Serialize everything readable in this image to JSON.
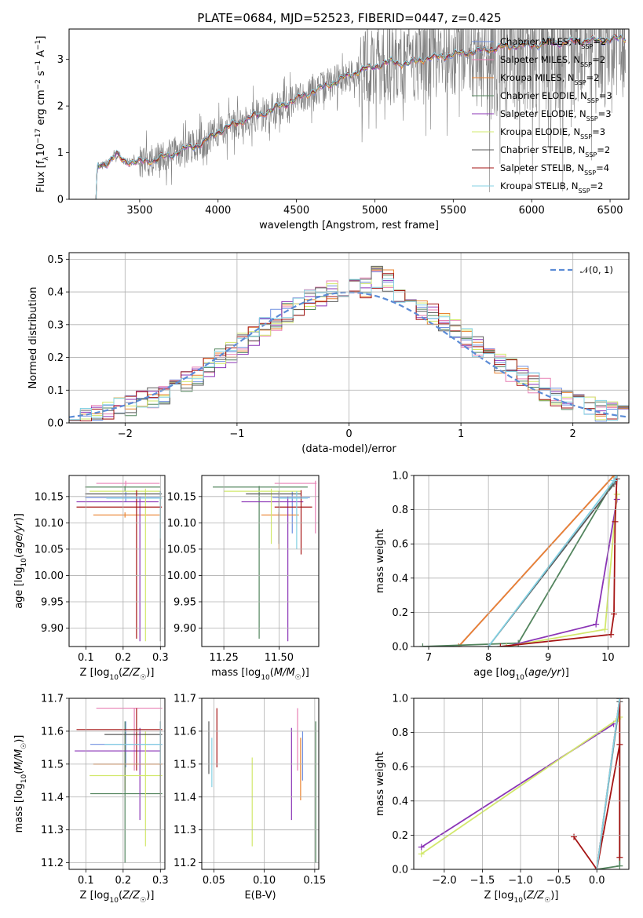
{
  "figure_title": "PLATE=0684, MJD=52523, FIBERID=0447, z=0.425",
  "colors": {
    "Chabrier MILES": "#6f8fe0",
    "Salpeter MILES": "#e77fb3",
    "Kroupa MILES": "#e98331",
    "Chabrier ELODIE": "#53855e",
    "Salpeter ELODIE": "#8b35b6",
    "Kroupa ELODIE": "#d2e86c",
    "Chabrier STELIB": "#5a5a5a",
    "Salpeter STELIB": "#a51414",
    "Kroupa STELIB": "#83d1e3",
    "observed": "#808080",
    "gaussian": "#5b8bd6"
  },
  "chart_data": [
    {
      "id": "spectrum",
      "type": "line",
      "xlabel": "wavelength [Angstrom, rest frame]",
      "ylabel": "Flux [f_λ 10^-17 erg cm^-2 s^-1 A^-1]",
      "xlim": [
        3050,
        6620
      ],
      "ylim": [
        0,
        3.65
      ],
      "xticks": [
        3500,
        4000,
        4500,
        5000,
        5500,
        6000,
        6500
      ],
      "yticks": [
        0,
        1,
        2,
        3
      ],
      "grid": false,
      "legend": {
        "position": "top-right"
      },
      "series": [
        {
          "name": "Chabrier MILES",
          "nssp": "2"
        },
        {
          "name": "Salpeter MILES",
          "nssp": "2"
        },
        {
          "name": "Kroupa MILES",
          "nssp": "2"
        },
        {
          "name": "Chabrier ELODIE",
          "nssp": "3"
        },
        {
          "name": "Salpeter ELODIE",
          "nssp": "3"
        },
        {
          "name": "Kroupa ELODIE",
          "nssp": "3"
        },
        {
          "name": "Chabrier STELIB",
          "nssp": "2"
        },
        {
          "name": "Salpeter STELIB",
          "nssp": "4"
        },
        {
          "name": "Kroupa STELIB",
          "nssp": "2"
        }
      ],
      "model_continuum": {
        "x": [
          3220,
          3230,
          3300,
          3350,
          3400,
          3500,
          3600,
          3700,
          3800,
          3900,
          4000,
          4100,
          4200,
          4300,
          4400,
          4500,
          4600,
          4700,
          4800,
          4900,
          5000,
          5100,
          5200,
          5300,
          5400,
          5500,
          5600,
          5700,
          5800,
          5900,
          6000,
          6100,
          6200,
          6300,
          6400,
          6500,
          6600
        ],
        "y": [
          0.0,
          0.7,
          0.8,
          0.95,
          0.82,
          0.8,
          0.85,
          0.95,
          1.1,
          1.2,
          1.45,
          1.6,
          1.75,
          1.85,
          2.0,
          2.15,
          2.3,
          2.45,
          2.6,
          2.75,
          2.85,
          2.95,
          2.9,
          3.0,
          3.05,
          3.1,
          3.15,
          3.2,
          3.25,
          3.3,
          3.3,
          3.35,
          3.35,
          3.4,
          3.4,
          3.42,
          3.45
        ]
      },
      "observed_flux_range": [
        3200,
        6600
      ]
    },
    {
      "id": "residuals",
      "type": "histogram",
      "xlabel": "(data-model)/error",
      "ylabel": "Normed distribution",
      "xlim": [
        -2.5,
        2.5
      ],
      "ylim": [
        0,
        0.52
      ],
      "xticks": [
        -2,
        -1,
        0,
        1,
        2
      ],
      "yticks": [
        0.0,
        0.1,
        0.2,
        0.3,
        0.4,
        0.5
      ],
      "grid": true,
      "legend": {
        "position": "top-right",
        "label": "𝒩(0, 1)"
      },
      "bin_width": 0.1,
      "bin_start": -2.5,
      "reference_curve": {
        "type": "normal",
        "mean": 0,
        "sigma": 1
      }
    },
    {
      "id": "age-vs-Z",
      "type": "errorbar",
      "xlabel": "Z [log10(Z/Z☉)]",
      "ylabel": "age [log10(age/yr)]",
      "xlim": [
        0.055,
        0.312
      ],
      "ylim": [
        9.865,
        10.19
      ],
      "xticks": [
        0.1,
        0.2,
        0.3
      ],
      "yticks": [
        9.9,
        9.95,
        10.0,
        10.05,
        10.1,
        10.15
      ],
      "grid": true,
      "points": [
        {
          "series": "Chabrier MILES",
          "x": 0.207,
          "y": 10.148,
          "xerr": [
            0.098,
            0.298
          ],
          "yerr": [
            10.14,
            10.16
          ]
        },
        {
          "series": "Salpeter MILES",
          "x": 0.207,
          "y": 10.175,
          "xerr": [
            0.128,
            0.298
          ],
          "yerr": [
            10.17,
            10.18
          ]
        },
        {
          "series": "Kroupa MILES",
          "x": 0.205,
          "y": 10.115,
          "xerr": [
            0.12,
            0.298
          ],
          "yerr": [
            10.11,
            10.12
          ]
        },
        {
          "series": "Chabrier ELODIE",
          "x": 0.205,
          "y": 10.168,
          "xerr": [
            0.098,
            0.3
          ],
          "yerr": [
            10.16,
            10.17
          ]
        },
        {
          "series": "Salpeter ELODIE",
          "x": 0.245,
          "y": 10.14,
          "xerr": [
            0.075,
            0.295
          ],
          "yerr": [
            9.875,
            10.15
          ]
        },
        {
          "series": "Kroupa ELODIE",
          "x": 0.26,
          "y": 10.16,
          "xerr": [
            0.11,
            0.3
          ],
          "yerr": [
            9.875,
            10.165
          ]
        },
        {
          "series": "Chabrier STELIB",
          "x": 0.3,
          "y": 10.155,
          "xerr": [
            0.098,
            0.304
          ],
          "yerr": [
            9.875,
            10.16
          ]
        },
        {
          "series": "Salpeter STELIB",
          "x": 0.236,
          "y": 10.13,
          "xerr": [
            0.075,
            0.304
          ],
          "yerr": [
            9.88,
            10.162
          ]
        },
        {
          "series": "Kroupa STELIB",
          "x": 0.3,
          "y": 10.147,
          "xerr": [
            0.155,
            0.304
          ],
          "yerr": [
            10.07,
            10.16
          ]
        }
      ]
    },
    {
      "id": "age-vs-mass",
      "type": "errorbar",
      "xlabel": "mass [log10(M/M☉)]",
      "ylabel": "",
      "xlim": [
        11.15,
        11.68
      ],
      "ylim": [
        9.865,
        10.19
      ],
      "xticks": [
        11.25,
        11.5
      ],
      "xtick_labels": [
        "11.25",
        "11.50"
      ],
      "yticks": [
        9.9,
        9.95,
        10.0,
        10.05,
        10.1,
        10.15
      ],
      "grid": true,
      "points": [
        {
          "series": "Chabrier MILES",
          "x": 11.56,
          "y": 10.148,
          "xerr": [
            11.47,
            11.64
          ],
          "yerr": [
            10.08,
            10.16
          ]
        },
        {
          "series": "Salpeter MILES",
          "x": 11.665,
          "y": 10.175,
          "xerr": [
            11.48,
            11.67
          ],
          "yerr": [
            10.08,
            10.18
          ]
        },
        {
          "series": "Kroupa MILES",
          "x": 11.5,
          "y": 10.115,
          "xerr": [
            11.42,
            11.59
          ],
          "yerr": [
            10.05,
            10.12
          ]
        },
        {
          "series": "Chabrier ELODIE",
          "x": 11.41,
          "y": 10.168,
          "xerr": [
            11.2,
            11.63
          ],
          "yerr": [
            9.88,
            10.17
          ]
        },
        {
          "series": "Salpeter ELODIE",
          "x": 11.54,
          "y": 10.14,
          "xerr": [
            11.33,
            11.61
          ],
          "yerr": [
            9.875,
            10.15
          ]
        },
        {
          "series": "Kroupa ELODIE",
          "x": 11.465,
          "y": 10.16,
          "xerr": [
            11.25,
            11.6
          ],
          "yerr": [
            10.06,
            10.165
          ]
        },
        {
          "series": "Chabrier STELIB",
          "x": 11.5,
          "y": 10.155,
          "xerr": [
            11.35,
            11.6
          ],
          "yerr": [
            10.06,
            10.16
          ]
        },
        {
          "series": "Salpeter STELIB",
          "x": 11.6,
          "y": 10.13,
          "xerr": [
            11.48,
            11.65
          ],
          "yerr": [
            10.04,
            10.162
          ]
        },
        {
          "series": "Kroupa STELIB",
          "x": 11.58,
          "y": 10.147,
          "xerr": [
            11.5,
            11.63
          ],
          "yerr": [
            10.05,
            10.16
          ]
        }
      ]
    },
    {
      "id": "mass-weight-vs-age",
      "type": "cumulative-line",
      "xlabel": "age [log10(age/yr)]",
      "ylabel": "mass weight",
      "xlim": [
        6.75,
        10.35
      ],
      "ylim": [
        0,
        1.0
      ],
      "xticks": [
        7,
        8,
        9,
        10
      ],
      "yticks": [
        0.0,
        0.2,
        0.4,
        0.6,
        0.8,
        1.0
      ],
      "grid": true,
      "series": [
        {
          "name": "Chabrier MILES",
          "x": [
            7.5,
            10.1
          ],
          "y": [
            0.0,
            1.0
          ]
        },
        {
          "name": "Salpeter MILES",
          "x": [
            7.5,
            10.1
          ],
          "y": [
            0.0,
            1.0
          ]
        },
        {
          "name": "Kroupa MILES",
          "x": [
            7.5,
            10.1
          ],
          "y": [
            0.0,
            1.0
          ]
        },
        {
          "name": "Chabrier ELODIE",
          "x": [
            6.9,
            8.5,
            10.15
          ],
          "y": [
            0.0,
            0.02,
            1.0
          ]
        },
        {
          "name": "Salpeter ELODIE",
          "x": [
            8.3,
            9.8,
            10.15
          ],
          "y": [
            0.0,
            0.13,
            0.86
          ]
        },
        {
          "name": "Kroupa ELODIE",
          "x": [
            8.3,
            9.95,
            10.15
          ],
          "y": [
            0.0,
            0.1,
            0.89
          ]
        },
        {
          "name": "Chabrier STELIB",
          "x": [
            8.0,
            10.1,
            10.15
          ],
          "y": [
            0.0,
            0.95,
            0.98
          ]
        },
        {
          "name": "Salpeter STELIB",
          "x": [
            8.2,
            10.05,
            10.1,
            10.12,
            10.15
          ],
          "y": [
            0.0,
            0.07,
            0.19,
            0.73,
            1.0
          ]
        },
        {
          "name": "Kroupa STELIB",
          "x": [
            8.0,
            10.1,
            10.15
          ],
          "y": [
            0.0,
            0.97,
            1.0
          ]
        }
      ]
    },
    {
      "id": "mass-vs-Z",
      "type": "errorbar",
      "xlabel": "Z [log10(Z/Z☉)]",
      "ylabel": "mass [log10(M/M☉)]",
      "xlim": [
        0.055,
        0.312
      ],
      "ylim": [
        11.18,
        11.7
      ],
      "xticks": [
        0.1,
        0.2,
        0.3
      ],
      "yticks": [
        11.2,
        11.3,
        11.4,
        11.5,
        11.6,
        11.7
      ],
      "grid": true,
      "points": [
        {
          "series": "Chabrier MILES",
          "x": 0.207,
          "y": 11.56,
          "xerr": [
            0.112,
            0.305
          ],
          "yerr": [
            11.49,
            11.63
          ]
        },
        {
          "series": "Salpeter MILES",
          "x": 0.23,
          "y": 11.67,
          "xerr": [
            0.128,
            0.305
          ],
          "yerr": [
            11.48,
            11.67
          ]
        },
        {
          "series": "Kroupa MILES",
          "x": 0.205,
          "y": 11.5,
          "xerr": [
            0.12,
            0.305
          ],
          "yerr": [
            11.42,
            11.59
          ]
        },
        {
          "series": "Chabrier ELODIE",
          "x": 0.205,
          "y": 11.41,
          "xerr": [
            0.112,
            0.305
          ],
          "yerr": [
            11.2,
            11.63
          ]
        },
        {
          "series": "Salpeter ELODIE",
          "x": 0.245,
          "y": 11.54,
          "xerr": [
            0.07,
            0.3
          ],
          "yerr": [
            11.33,
            11.61
          ]
        },
        {
          "series": "Kroupa ELODIE",
          "x": 0.26,
          "y": 11.465,
          "xerr": [
            0.11,
            0.305
          ],
          "yerr": [
            11.25,
            11.6
          ]
        },
        {
          "series": "Chabrier STELIB",
          "x": 0.3,
          "y": 11.59,
          "xerr": [
            0.15,
            0.305
          ],
          "yerr": [
            11.2,
            11.63
          ]
        },
        {
          "series": "Salpeter STELIB",
          "x": 0.236,
          "y": 11.605,
          "xerr": [
            0.075,
            0.305
          ],
          "yerr": [
            11.48,
            11.67
          ]
        },
        {
          "series": "Kroupa STELIB",
          "x": 0.3,
          "y": 11.56,
          "xerr": [
            0.15,
            0.305
          ],
          "yerr": [
            11.5,
            11.63
          ]
        }
      ]
    },
    {
      "id": "mass-vs-ebv",
      "type": "errorbar",
      "xlabel": "E(B-V)",
      "ylabel": "",
      "xlim": [
        0.038,
        0.154
      ],
      "ylim": [
        11.18,
        11.7
      ],
      "xticks": [
        0.05,
        0.1,
        0.15
      ],
      "xtick_labels": [
        "0.05",
        "0.10",
        "0.15"
      ],
      "yticks": [
        11.2,
        11.3,
        11.4,
        11.5,
        11.6,
        11.7
      ],
      "grid": true,
      "points": [
        {
          "series": "Chabrier MILES",
          "x": 0.138,
          "y": 11.5,
          "yerr": [
            11.45,
            11.6
          ]
        },
        {
          "series": "Salpeter MILES",
          "x": 0.133,
          "y": 11.55,
          "yerr": [
            11.48,
            11.67
          ]
        },
        {
          "series": "Kroupa MILES",
          "x": 0.136,
          "y": 11.48,
          "yerr": [
            11.39,
            11.58
          ]
        },
        {
          "series": "Chabrier ELODIE",
          "x": 0.151,
          "y": 11.4,
          "yerr": [
            11.2,
            11.63
          ]
        },
        {
          "series": "Salpeter ELODIE",
          "x": 0.127,
          "y": 11.47,
          "yerr": [
            11.33,
            11.61
          ]
        },
        {
          "series": "Kroupa ELODIE",
          "x": 0.088,
          "y": 11.4,
          "yerr": [
            11.25,
            11.52
          ]
        },
        {
          "series": "Chabrier STELIB",
          "x": 0.045,
          "y": 11.55,
          "yerr": [
            11.47,
            11.63
          ]
        },
        {
          "series": "Salpeter STELIB",
          "x": 0.053,
          "y": 11.58,
          "yerr": [
            11.49,
            11.67
          ]
        },
        {
          "series": "Kroupa STELIB",
          "x": 0.048,
          "y": 11.5,
          "yerr": [
            11.43,
            11.58
          ]
        }
      ]
    },
    {
      "id": "mass-weight-vs-Z",
      "type": "cumulative-line",
      "xlabel": "Z [log10(Z/Z☉)]",
      "ylabel": "mass weight",
      "xlim": [
        -2.4,
        0.42
      ],
      "ylim": [
        0,
        1.0
      ],
      "xticks": [
        -2.0,
        -1.5,
        -1.0,
        -0.5,
        0.0
      ],
      "xtick_labels": [
        "−2.0",
        "−1.5",
        "−1.0",
        "−0.5",
        "0.0"
      ],
      "yticks": [
        0.0,
        0.2,
        0.4,
        0.6,
        0.8,
        1.0
      ],
      "grid": true,
      "series": [
        {
          "name": "Chabrier MILES",
          "x": [
            0.0,
            0.3
          ],
          "y": [
            0.0,
            1.0
          ]
        },
        {
          "name": "Salpeter MILES",
          "x": [
            0.0,
            0.3
          ],
          "y": [
            0.0,
            1.0
          ]
        },
        {
          "name": "Kroupa MILES",
          "x": [
            0.0,
            0.3
          ],
          "y": [
            0.0,
            1.0
          ]
        },
        {
          "name": "Chabrier ELODIE",
          "x": [
            0.0,
            0.3,
            0.3
          ],
          "y": [
            0.0,
            0.02,
            1.0
          ]
        },
        {
          "name": "Salpeter ELODIE",
          "x": [
            -2.3,
            0.22
          ],
          "y": [
            0.13,
            0.85
          ]
        },
        {
          "name": "Kroupa ELODIE",
          "x": [
            -2.3,
            0.28,
            0.3
          ],
          "y": [
            0.09,
            0.88,
            0.89
          ]
        },
        {
          "name": "Chabrier STELIB",
          "x": [
            0.0,
            0.3
          ],
          "y": [
            0.0,
            0.98
          ]
        },
        {
          "name": "Salpeter STELIB",
          "x": [
            -0.3,
            0.0,
            0.3,
            0.3,
            0.3
          ],
          "y": [
            0.19,
            0.0,
            0.73,
            0.07,
            1.0
          ]
        },
        {
          "name": "Kroupa STELIB",
          "x": [
            0.0,
            0.3
          ],
          "y": [
            0.0,
            1.0
          ]
        }
      ]
    }
  ]
}
